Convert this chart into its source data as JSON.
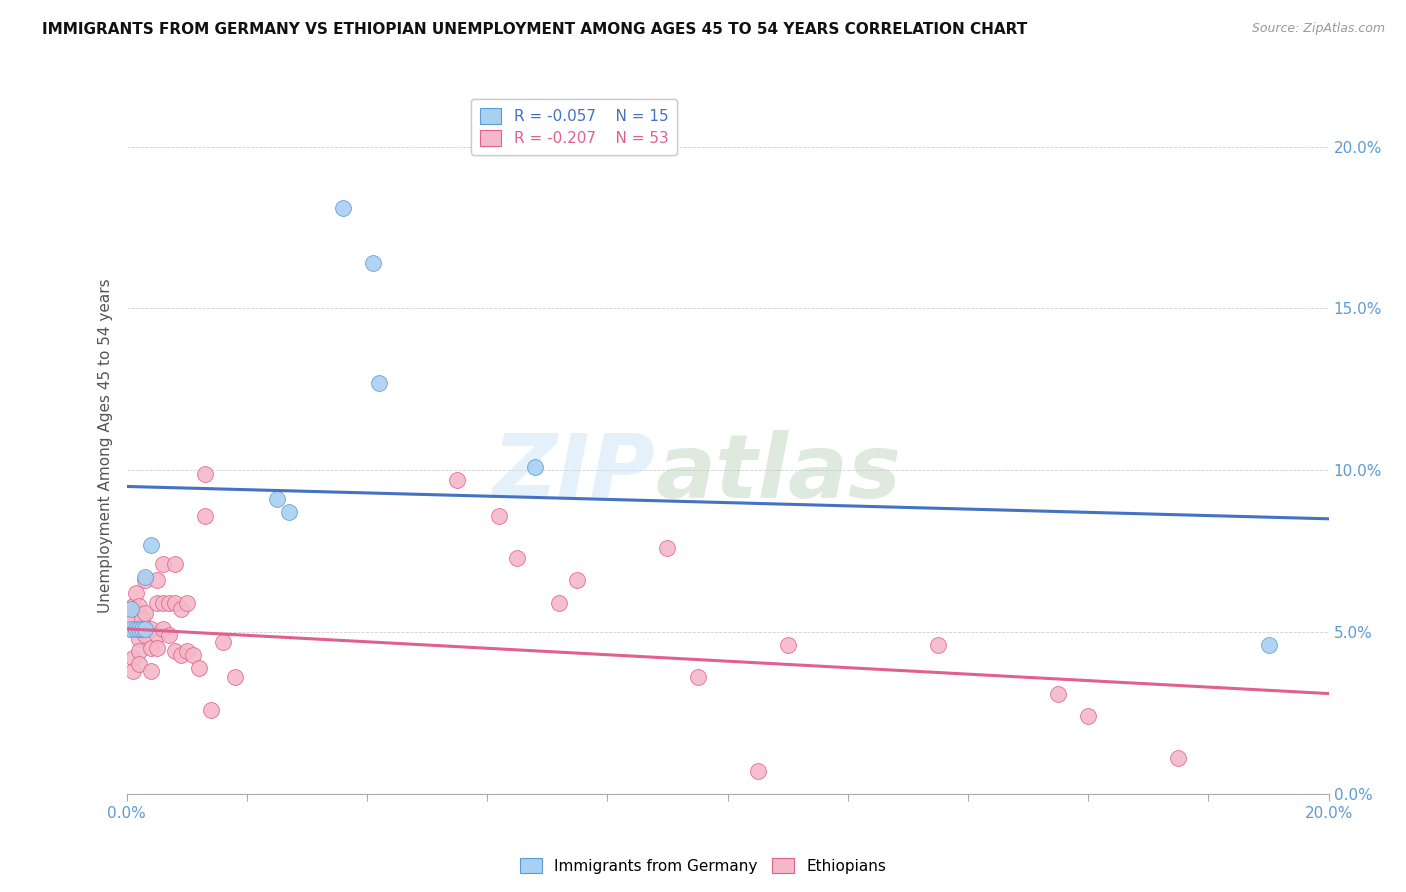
{
  "title": "IMMIGRANTS FROM GERMANY VS ETHIOPIAN UNEMPLOYMENT AMONG AGES 45 TO 54 YEARS CORRELATION CHART",
  "source": "Source: ZipAtlas.com",
  "ylabel": "Unemployment Among Ages 45 to 54 years",
  "xlim": [
    0.0,
    0.2
  ],
  "ylim": [
    0.0,
    0.215
  ],
  "yticks": [
    0.0,
    0.05,
    0.1,
    0.15,
    0.2
  ],
  "legend_r1": "-0.057",
  "legend_n1": "15",
  "legend_r2": "-0.207",
  "legend_n2": "53",
  "watermark_top": "ZIP",
  "watermark_bot": "atlas",
  "blue_fill": "#a8d0f0",
  "blue_edge": "#5b9bd5",
  "pink_fill": "#f4b8c8",
  "pink_edge": "#e06090",
  "blue_line": "#4472c4",
  "pink_line": "#e06090",
  "axis_color": "#5b9bd5",
  "background_color": "#ffffff",
  "germany_x": [
    0.0008,
    0.0008,
    0.0015,
    0.002,
    0.0025,
    0.003,
    0.003,
    0.004,
    0.025,
    0.027,
    0.036,
    0.041,
    0.042,
    0.068,
    0.19
  ],
  "germany_y": [
    0.051,
    0.057,
    0.051,
    0.051,
    0.051,
    0.051,
    0.067,
    0.077,
    0.091,
    0.087,
    0.181,
    0.164,
    0.127,
    0.101,
    0.046
  ],
  "ethiopia_x": [
    0.0005,
    0.0007,
    0.001,
    0.001,
    0.001,
    0.0015,
    0.002,
    0.002,
    0.002,
    0.002,
    0.0025,
    0.003,
    0.003,
    0.003,
    0.004,
    0.004,
    0.004,
    0.005,
    0.005,
    0.005,
    0.005,
    0.006,
    0.006,
    0.006,
    0.007,
    0.007,
    0.008,
    0.008,
    0.008,
    0.009,
    0.009,
    0.01,
    0.01,
    0.011,
    0.012,
    0.013,
    0.013,
    0.014,
    0.016,
    0.018,
    0.055,
    0.062,
    0.065,
    0.072,
    0.075,
    0.09,
    0.095,
    0.105,
    0.11,
    0.135,
    0.155,
    0.16,
    0.175
  ],
  "ethiopia_y": [
    0.051,
    0.054,
    0.042,
    0.038,
    0.058,
    0.062,
    0.058,
    0.048,
    0.044,
    0.04,
    0.054,
    0.066,
    0.056,
    0.049,
    0.045,
    0.051,
    0.038,
    0.066,
    0.059,
    0.049,
    0.045,
    0.071,
    0.059,
    0.051,
    0.059,
    0.049,
    0.071,
    0.059,
    0.044,
    0.057,
    0.043,
    0.059,
    0.044,
    0.043,
    0.039,
    0.099,
    0.086,
    0.026,
    0.047,
    0.036,
    0.097,
    0.086,
    0.073,
    0.059,
    0.066,
    0.076,
    0.036,
    0.007,
    0.046,
    0.046,
    0.031,
    0.024,
    0.011
  ]
}
